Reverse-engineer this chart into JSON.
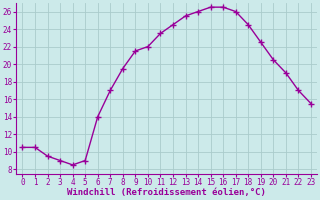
{
  "x": [
    0,
    1,
    2,
    3,
    4,
    5,
    6,
    7,
    8,
    9,
    10,
    11,
    12,
    13,
    14,
    15,
    16,
    17,
    18,
    19,
    20,
    21,
    22,
    23
  ],
  "y": [
    10.5,
    10.5,
    9.5,
    9.0,
    8.5,
    9.0,
    14.0,
    17.0,
    19.5,
    21.5,
    22.0,
    23.5,
    24.5,
    25.5,
    26.0,
    26.5,
    26.5,
    26.0,
    24.5,
    22.5,
    20.5,
    19.0,
    17.0,
    15.5
  ],
  "line_color": "#990099",
  "marker": "+",
  "marker_size": 4,
  "bg_color": "#cceaea",
  "grid_color": "#aacccc",
  "xlabel": "Windchill (Refroidissement éolien,°C)",
  "xlim": [
    -0.5,
    23.5
  ],
  "ylim": [
    7.5,
    27.0
  ],
  "xticks": [
    0,
    1,
    2,
    3,
    4,
    5,
    6,
    7,
    8,
    9,
    10,
    11,
    12,
    13,
    14,
    15,
    16,
    17,
    18,
    19,
    20,
    21,
    22,
    23
  ],
  "yticks": [
    8,
    10,
    12,
    14,
    16,
    18,
    20,
    22,
    24,
    26
  ],
  "xlabel_fontsize": 6.5,
  "tick_fontsize": 5.5,
  "line_width": 1.0,
  "marker_linewidth": 1.0
}
